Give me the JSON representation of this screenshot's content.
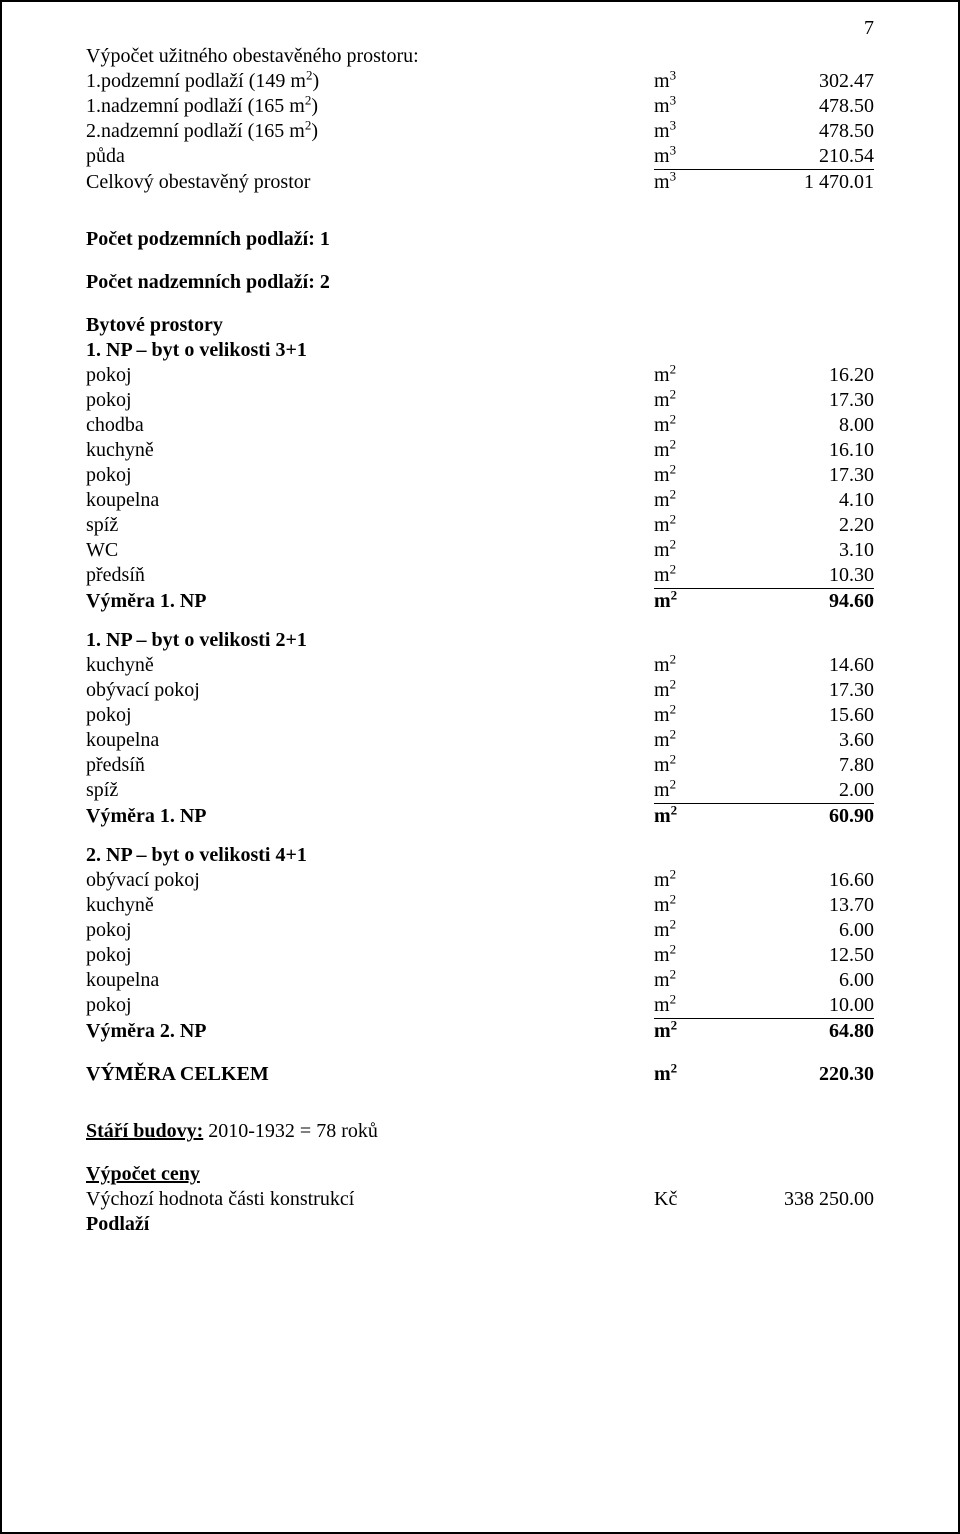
{
  "pageNumber": "7",
  "section1": {
    "title": "Výpočet užitného obestavěného prostoru:",
    "rows": [
      {
        "label_html": "1.podzemní podlaží  (149 m<sup>2</sup>)",
        "unit_html": "m<sup>3</sup>",
        "value": "302.47"
      },
      {
        "label_html": "1.nadzemní podlaží  (165 m<sup>2</sup>)",
        "unit_html": "m<sup>3</sup>",
        "value": "478.50"
      },
      {
        "label_html": "2.nadzemní podlaží  (165 m<sup>2</sup>)",
        "unit_html": "m<sup>3</sup>",
        "value": "478.50"
      },
      {
        "label_html": "půda",
        "unit_html": "m<sup>3</sup>",
        "value": "210.54"
      }
    ],
    "total": {
      "label_html": "Celkový obestavěný prostor",
      "unit_html": "m<sup>3</sup>",
      "value": "1 470.01"
    }
  },
  "counts": {
    "underground": "Počet podzemních podlaží: 1",
    "above": "Počet nadzemních podlaží: 2"
  },
  "section2": {
    "title": "Bytové prostory",
    "sub1": {
      "title": "1. NP – byt o velikosti 3+1",
      "rows": [
        {
          "label": "pokoj",
          "unit_html": "m<sup>2</sup>",
          "value": "16.20"
        },
        {
          "label": "pokoj",
          "unit_html": "m<sup>2</sup>",
          "value": "17.30"
        },
        {
          "label": "chodba",
          "unit_html": "m<sup>2</sup>",
          "value": "8.00"
        },
        {
          "label": "kuchyně",
          "unit_html": "m<sup>2</sup>",
          "value": "16.10"
        },
        {
          "label": "pokoj",
          "unit_html": "m<sup>2</sup>",
          "value": "17.30"
        },
        {
          "label": "koupelna",
          "unit_html": "m<sup>2</sup>",
          "value": "4.10"
        },
        {
          "label": "spíž",
          "unit_html": "m<sup>2</sup>",
          "value": "2.20"
        },
        {
          "label": "WC",
          "unit_html": "m<sup>2</sup>",
          "value": "3.10"
        },
        {
          "label": "předsíň",
          "unit_html": "m<sup>2</sup>",
          "value": "10.30"
        }
      ],
      "total": {
        "label": "Výměra 1. NP",
        "unit_html": "m<sup>2</sup>",
        "value": "94.60"
      }
    },
    "sub2": {
      "title": "1. NP – byt o velikosti 2+1",
      "rows": [
        {
          "label": "kuchyně",
          "unit_html": "m<sup>2</sup>",
          "value": "14.60"
        },
        {
          "label": "obývací pokoj",
          "unit_html": "m<sup>2</sup>",
          "value": "17.30"
        },
        {
          "label": "pokoj",
          "unit_html": "m<sup>2</sup>",
          "value": "15.60"
        },
        {
          "label": "koupelna",
          "unit_html": "m<sup>2</sup>",
          "value": "3.60"
        },
        {
          "label": "předsíň",
          "unit_html": "m<sup>2</sup>",
          "value": "7.80"
        },
        {
          "label": "spíž",
          "unit_html": "m<sup>2</sup>",
          "value": "2.00"
        }
      ],
      "total": {
        "label": "Výměra 1. NP",
        "unit_html": "m<sup>2</sup>",
        "value": "60.90"
      }
    },
    "sub3": {
      "title": "2. NP – byt o velikosti 4+1",
      "rows": [
        {
          "label": "obývací pokoj",
          "unit_html": "m<sup>2</sup>",
          "value": "16.60"
        },
        {
          "label": "kuchyně",
          "unit_html": "m<sup>2</sup>",
          "value": "13.70"
        },
        {
          "label": "pokoj",
          "unit_html": "m<sup>2</sup>",
          "value": "6.00"
        },
        {
          "label": "pokoj",
          "unit_html": "m<sup>2</sup>",
          "value": "12.50"
        },
        {
          "label": "koupelna",
          "unit_html": "m<sup>2</sup>",
          "value": "6.00"
        },
        {
          "label": "pokoj",
          "unit_html": "m<sup>2</sup>",
          "value": "10.00"
        }
      ],
      "total": {
        "label": "Výměra 2. NP",
        "unit_html": "m<sup>2</sup>",
        "value": "64.80"
      }
    },
    "grand": {
      "label": "VÝMĚRA CELKEM",
      "unit_html": "m<sup>2</sup>",
      "value": "220.30"
    }
  },
  "footer": {
    "age": "Stáří budovy: 2010-1932 = 78 roků",
    "calcTitle": "Výpočet ceny",
    "baseRow": {
      "label": "Výchozí hodnota části konstrukcí",
      "unit": "Kč",
      "value": "338 250.00"
    },
    "lastLabel": "Podlaží"
  }
}
